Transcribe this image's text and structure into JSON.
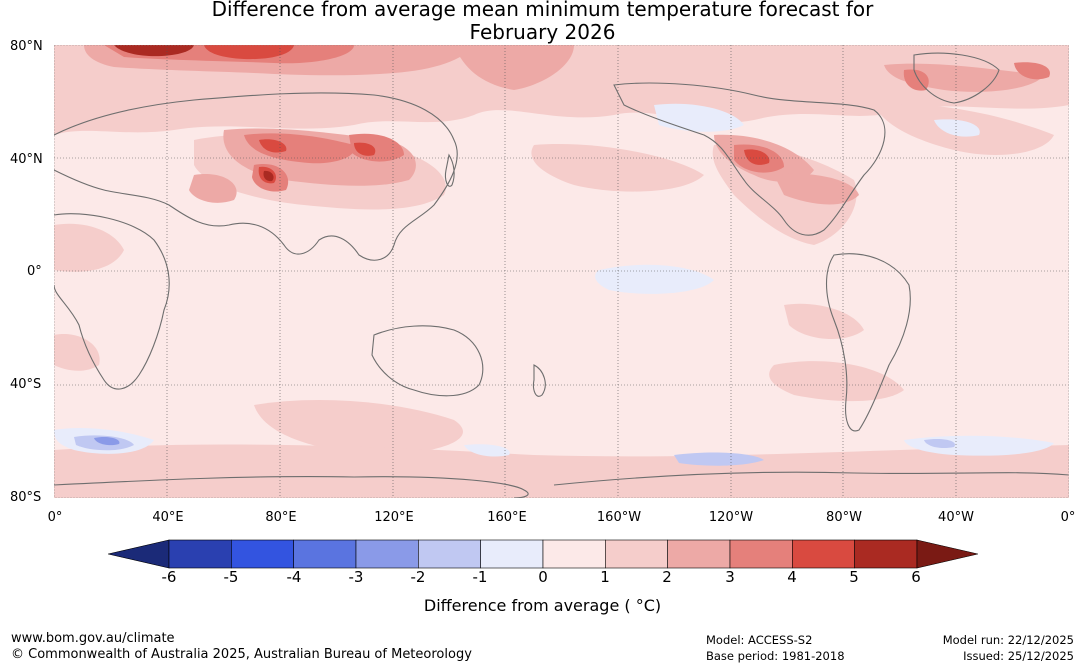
{
  "title": {
    "line1": "Difference from average mean minimum temperature forecast for",
    "line2": "February 2026"
  },
  "map": {
    "lat_labels": [
      "80°N",
      "40°N",
      "0°",
      "40°S",
      "80°S"
    ],
    "lon_labels": [
      "0°",
      "40°E",
      "80°E",
      "120°E",
      "160°E",
      "160°W",
      "120°W",
      "80°W",
      "40°W",
      "0°"
    ]
  },
  "legend": {
    "label": "Difference from average ( °C)",
    "ticks": [
      "-6",
      "-5",
      "-4",
      "-3",
      "-2",
      "-1",
      "0",
      "1",
      "2",
      "3",
      "4",
      "5",
      "6"
    ],
    "colors": {
      "below_min": "#1b2a78",
      "bins": [
        "#2a40b0",
        "#3354e0",
        "#5a74e0",
        "#8a9ae8",
        "#c0c8f2",
        "#e8ecfb",
        "#fce9e8",
        "#f5cdcb",
        "#eda9a6",
        "#e5807b",
        "#d94a40",
        "#aa2a22"
      ],
      "above_max": "#7a1a14"
    }
  },
  "footer": {
    "url": "www.bom.gov.au/climate",
    "copyright": "© Commonwealth of Australia 2025, Australian Bureau of Meteorology",
    "model": "Model: ACCESS-S2",
    "base_period": "Base period: 1981-2018",
    "model_run": "Model run: 22/12/2025",
    "issued": "Issued: 25/12/2025"
  }
}
